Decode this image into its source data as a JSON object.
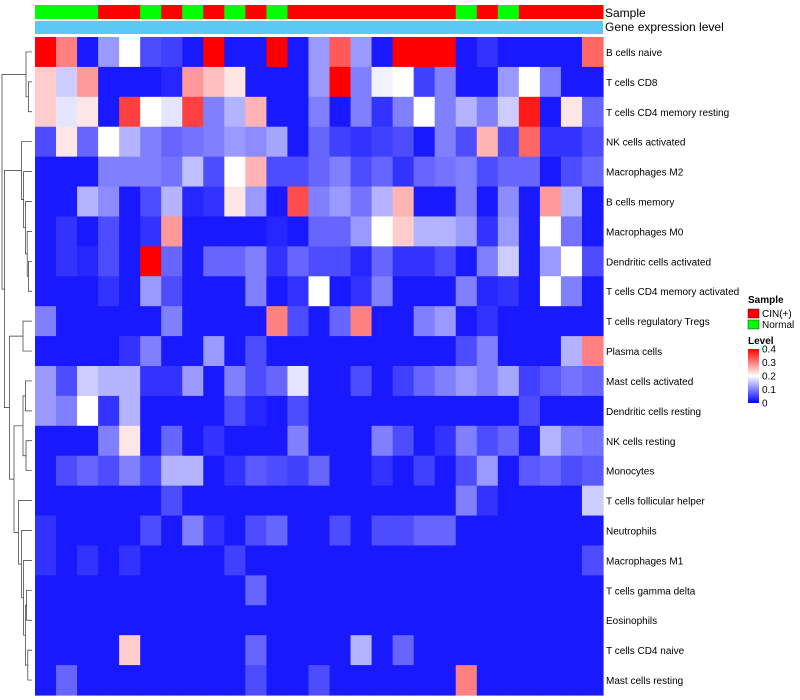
{
  "chart_data": {
    "type": "heatmap",
    "annotation_rows": [
      "Sample",
      "Gene expression level"
    ],
    "sample_groups": [
      "N",
      "N",
      "N",
      "C",
      "C",
      "N",
      "C",
      "N",
      "C",
      "N",
      "C",
      "N",
      "C",
      "C",
      "C",
      "C",
      "C",
      "C",
      "C",
      "C",
      "N",
      "C",
      "N",
      "C",
      "C",
      "C",
      "C"
    ],
    "row_labels": [
      "B cells naive",
      "T cells CD8",
      "T cells CD4 memory resting",
      "NK cells activated",
      "Macrophages M2",
      "B cells memory",
      "Macrophages M0",
      "Dendritic cells activated",
      "T cells CD4 memory activated",
      "T cells regulatory  Tregs",
      "Plasma cells",
      "Mast cells activated",
      "Dendritic cells resting",
      "NK cells resting",
      "Monocytes",
      "T cells follicular helper",
      "Neutrophils",
      "Macrophages M1",
      "T cells gamma delta",
      "Eosinophils",
      "T cells CD4 naive",
      "Mast cells resting"
    ],
    "values": [
      [
        0.4,
        0.3,
        0.02,
        0.12,
        0.2,
        0.06,
        0.05,
        0.02,
        0.4,
        0.02,
        0.02,
        0.4,
        0.02,
        0.12,
        0.33,
        0.12,
        0.02,
        0.4,
        0.4,
        0.4,
        0.02,
        0.04,
        0.02,
        0.02,
        0.02,
        0.02,
        0.32
      ],
      [
        0.24,
        0.16,
        0.28,
        0.02,
        0.02,
        0.02,
        0.03,
        0.28,
        0.25,
        0.22,
        0.02,
        0.02,
        0.02,
        0.12,
        0.4,
        0.1,
        0.19,
        0.2,
        0.05,
        0.1,
        0.02,
        0.02,
        0.12,
        0.2,
        0.1,
        0.02,
        0.02
      ],
      [
        0.24,
        0.18,
        0.22,
        0.02,
        0.35,
        0.2,
        0.18,
        0.35,
        0.1,
        0.14,
        0.26,
        0.02,
        0.02,
        0.1,
        0.02,
        0.1,
        0.04,
        0.1,
        0.2,
        0.1,
        0.14,
        0.1,
        0.16,
        0.38,
        0.02,
        0.22,
        0.08
      ],
      [
        0.06,
        0.22,
        0.08,
        0.2,
        0.14,
        0.1,
        0.08,
        0.09,
        0.1,
        0.12,
        0.11,
        0.13,
        0.02,
        0.08,
        0.05,
        0.04,
        0.05,
        0.06,
        0.02,
        0.1,
        0.06,
        0.26,
        0.06,
        0.32,
        0.04,
        0.04,
        0.06
      ],
      [
        0.02,
        0.02,
        0.02,
        0.1,
        0.1,
        0.1,
        0.09,
        0.15,
        0.06,
        0.2,
        0.26,
        0.06,
        0.06,
        0.08,
        0.1,
        0.06,
        0.08,
        0.04,
        0.08,
        0.09,
        0.1,
        0.06,
        0.08,
        0.08,
        0.02,
        0.06,
        0.08
      ],
      [
        0.02,
        0.02,
        0.14,
        0.11,
        0.02,
        0.06,
        0.14,
        0.03,
        0.04,
        0.22,
        0.12,
        0.02,
        0.34,
        0.1,
        0.12,
        0.09,
        0.14,
        0.26,
        0.02,
        0.02,
        0.1,
        0.02,
        0.11,
        0.02,
        0.28,
        0.14,
        0.02
      ],
      [
        0.02,
        0.04,
        0.02,
        0.06,
        0.02,
        0.04,
        0.28,
        0.02,
        0.02,
        0.02,
        0.02,
        0.03,
        0.02,
        0.08,
        0.08,
        0.12,
        0.2,
        0.24,
        0.14,
        0.14,
        0.12,
        0.04,
        0.12,
        0.02,
        0.2,
        0.09,
        0.02
      ],
      [
        0.02,
        0.04,
        0.03,
        0.06,
        0.02,
        0.4,
        0.08,
        0.02,
        0.08,
        0.08,
        0.1,
        0.04,
        0.08,
        0.06,
        0.06,
        0.03,
        0.08,
        0.04,
        0.04,
        0.06,
        0.02,
        0.1,
        0.16,
        0.02,
        0.12,
        0.2,
        0.06
      ],
      [
        0.02,
        0.02,
        0.02,
        0.04,
        0.02,
        0.12,
        0.06,
        0.02,
        0.02,
        0.02,
        0.1,
        0.02,
        0.04,
        0.2,
        0.02,
        0.04,
        0.1,
        0.02,
        0.02,
        0.02,
        0.1,
        0.03,
        0.04,
        0.02,
        0.2,
        0.1,
        0.02
      ],
      [
        0.1,
        0.02,
        0.02,
        0.02,
        0.02,
        0.02,
        0.1,
        0.02,
        0.02,
        0.02,
        0.02,
        0.3,
        0.06,
        0.02,
        0.08,
        0.3,
        0.02,
        0.02,
        0.1,
        0.12,
        0.02,
        0.04,
        0.02,
        0.02,
        0.02,
        0.02,
        0.02
      ],
      [
        0.02,
        0.02,
        0.02,
        0.02,
        0.04,
        0.1,
        0.02,
        0.02,
        0.12,
        0.02,
        0.06,
        0.02,
        0.02,
        0.02,
        0.02,
        0.02,
        0.02,
        0.02,
        0.02,
        0.02,
        0.06,
        0.1,
        0.02,
        0.02,
        0.02,
        0.14,
        0.3
      ],
      [
        0.12,
        0.06,
        0.16,
        0.14,
        0.14,
        0.04,
        0.04,
        0.12,
        0.02,
        0.1,
        0.06,
        0.08,
        0.18,
        0.02,
        0.02,
        0.06,
        0.02,
        0.05,
        0.08,
        0.1,
        0.12,
        0.1,
        0.13,
        0.05,
        0.07,
        0.09,
        0.08
      ],
      [
        0.12,
        0.1,
        0.2,
        0.04,
        0.14,
        0.02,
        0.02,
        0.02,
        0.02,
        0.06,
        0.03,
        0.02,
        0.06,
        0.02,
        0.02,
        0.02,
        0.02,
        0.02,
        0.02,
        0.02,
        0.02,
        0.02,
        0.02,
        0.06,
        0.02,
        0.02,
        0.02
      ],
      [
        0.02,
        0.02,
        0.02,
        0.1,
        0.22,
        0.02,
        0.08,
        0.02,
        0.04,
        0.02,
        0.02,
        0.02,
        0.1,
        0.02,
        0.02,
        0.02,
        0.1,
        0.06,
        0.02,
        0.04,
        0.1,
        0.06,
        0.08,
        0.02,
        0.14,
        0.1,
        0.09
      ],
      [
        0.02,
        0.06,
        0.08,
        0.06,
        0.1,
        0.06,
        0.14,
        0.14,
        0.02,
        0.04,
        0.07,
        0.06,
        0.05,
        0.08,
        0.02,
        0.02,
        0.04,
        0.02,
        0.05,
        0.02,
        0.06,
        0.12,
        0.02,
        0.07,
        0.08,
        0.06,
        0.07
      ],
      [
        0.02,
        0.02,
        0.02,
        0.02,
        0.02,
        0.02,
        0.06,
        0.02,
        0.02,
        0.02,
        0.02,
        0.02,
        0.02,
        0.02,
        0.02,
        0.02,
        0.02,
        0.02,
        0.02,
        0.02,
        0.1,
        0.04,
        0.02,
        0.02,
        0.02,
        0.02,
        0.16
      ],
      [
        0.04,
        0.02,
        0.02,
        0.02,
        0.02,
        0.06,
        0.02,
        0.1,
        0.04,
        0.02,
        0.06,
        0.08,
        0.02,
        0.02,
        0.06,
        0.02,
        0.06,
        0.06,
        0.08,
        0.08,
        0.02,
        0.02,
        0.02,
        0.02,
        0.02,
        0.02,
        0.02
      ],
      [
        0.04,
        0.02,
        0.04,
        0.02,
        0.04,
        0.02,
        0.02,
        0.02,
        0.02,
        0.05,
        0.02,
        0.02,
        0.02,
        0.02,
        0.02,
        0.02,
        0.02,
        0.02,
        0.02,
        0.02,
        0.02,
        0.02,
        0.02,
        0.02,
        0.02,
        0.02,
        0.06
      ],
      [
        0.02,
        0.02,
        0.02,
        0.02,
        0.02,
        0.02,
        0.02,
        0.02,
        0.02,
        0.02,
        0.08,
        0.02,
        0.02,
        0.02,
        0.02,
        0.02,
        0.02,
        0.02,
        0.02,
        0.02,
        0.02,
        0.02,
        0.02,
        0.02,
        0.02,
        0.02,
        0.02
      ],
      [
        0.02,
        0.02,
        0.02,
        0.02,
        0.02,
        0.02,
        0.02,
        0.02,
        0.02,
        0.02,
        0.02,
        0.02,
        0.02,
        0.02,
        0.02,
        0.02,
        0.02,
        0.02,
        0.02,
        0.02,
        0.02,
        0.02,
        0.02,
        0.02,
        0.02,
        0.02,
        0.02
      ],
      [
        0.02,
        0.02,
        0.02,
        0.02,
        0.24,
        0.02,
        0.02,
        0.02,
        0.02,
        0.02,
        0.08,
        0.02,
        0.02,
        0.02,
        0.02,
        0.14,
        0.02,
        0.08,
        0.02,
        0.02,
        0.02,
        0.02,
        0.02,
        0.02,
        0.02,
        0.02,
        0.02
      ],
      [
        0.02,
        0.08,
        0.02,
        0.02,
        0.02,
        0.02,
        0.02,
        0.02,
        0.02,
        0.02,
        0.06,
        0.02,
        0.02,
        0.06,
        0.02,
        0.02,
        0.02,
        0.02,
        0.02,
        0.02,
        0.3,
        0.02,
        0.02,
        0.02,
        0.02,
        0.02,
        0.02
      ]
    ],
    "color_scale": {
      "min": 0,
      "mid": 0.2,
      "max": 0.4,
      "low_color": "#0000ff",
      "mid_color": "#ffffff",
      "high_color": "#ff0000"
    },
    "legend": {
      "sample_title": "Sample",
      "groups": [
        {
          "key": "C",
          "label": "CIN(+)",
          "color": "#ff0000"
        },
        {
          "key": "N",
          "label": "Normal",
          "color": "#00ff00"
        }
      ],
      "level_title": "Level",
      "level_ticks": [
        {
          "value": 0.4,
          "label": "0.4"
        },
        {
          "value": 0.3,
          "label": "0.3"
        },
        {
          "value": 0.2,
          "label": "0.2"
        },
        {
          "value": 0.1,
          "label": "0.1"
        },
        {
          "value": 0,
          "label": "0"
        }
      ]
    },
    "gene_expression_bar": {
      "color": "#5bc8f5"
    },
    "dendrogram": {
      "side": "left",
      "color": "#333333"
    }
  }
}
